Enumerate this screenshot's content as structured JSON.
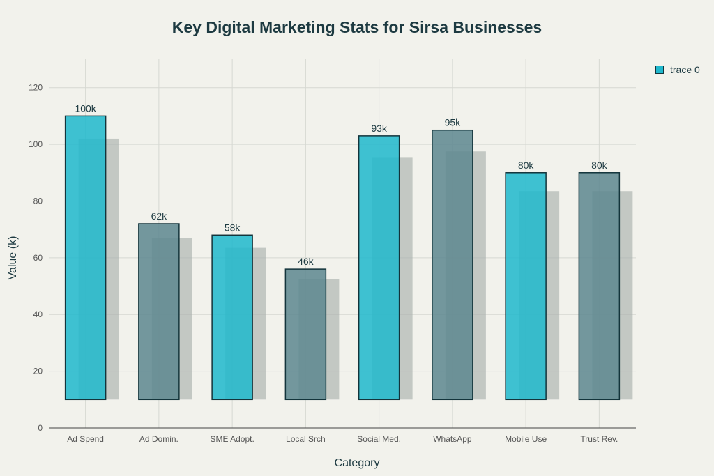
{
  "chart_data": {
    "type": "bar",
    "title": "Key Digital Marketing Stats for Sirsa Businesses",
    "xlabel": "Category",
    "ylabel": "Value (k)",
    "ylim": [
      0,
      130
    ],
    "yticks": [
      0,
      20,
      40,
      60,
      80,
      100,
      120
    ],
    "grid": true,
    "legend_position": "top-right",
    "bar_base": 10,
    "categories": [
      "Ad Spend",
      "Ad Domin.",
      "SME Adopt.",
      "Local Srch",
      "Social Med.",
      "WhatsApp",
      "Mobile Use",
      "Trust Rev."
    ],
    "series": [
      {
        "name": "trace 0",
        "values": [
          110,
          72,
          68,
          56,
          103,
          105,
          90,
          90
        ],
        "labels": [
          "100k",
          "62k",
          "58k",
          "46k",
          "93k",
          "95k",
          "80k",
          "80k"
        ],
        "colors": [
          "#1fb8cd",
          "#5d878f",
          "#1fb8cd",
          "#5d878f",
          "#1fb8cd",
          "#5d878f",
          "#1fb8cd",
          "#5d878f"
        ]
      }
    ],
    "shadow_values": [
      102,
      67,
      63.5,
      52.5,
      95.5,
      97.5,
      83.5,
      83.5
    ]
  },
  "colors": {
    "primary": "#1fb8cd",
    "secondary": "#5d878f",
    "shadow": "#a9b0ad",
    "outline": "#13343b",
    "background": "#f2f2ec"
  }
}
